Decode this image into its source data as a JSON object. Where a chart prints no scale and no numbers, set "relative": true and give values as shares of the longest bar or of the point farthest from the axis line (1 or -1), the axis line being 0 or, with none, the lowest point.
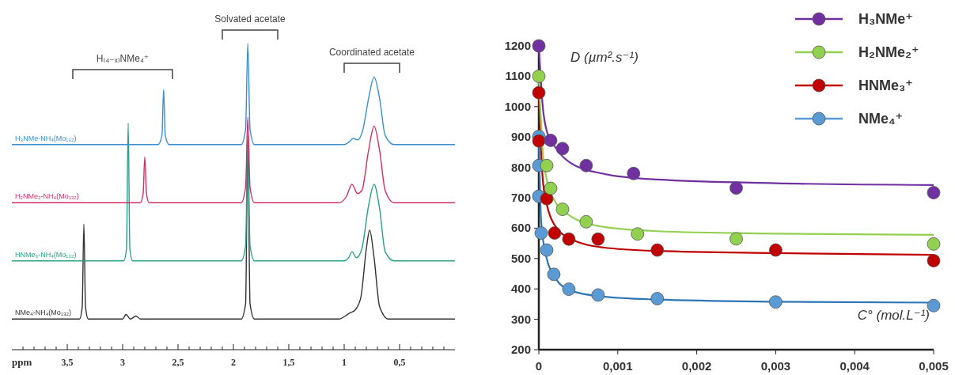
{
  "chart_data": [
    {
      "type": "line",
      "relative": true,
      "xlabel": "ppm",
      "xlim": [
        4,
        0
      ],
      "tick_labels": "x",
      "xticks": [
        {
          "value": 3.9,
          "label": null
        },
        {
          "value": 3.8,
          "label": null
        },
        {
          "value": 3.7,
          "label": null
        },
        {
          "value": 3.6,
          "label": null
        },
        {
          "value": 3.5,
          "label": "3,5"
        },
        {
          "value": 3.4,
          "label": null
        },
        {
          "value": 3.3,
          "label": null
        },
        {
          "value": 3.2,
          "label": null
        },
        {
          "value": 3.1,
          "label": null
        },
        {
          "value": 3,
          "label": "3"
        },
        {
          "value": 2.9,
          "label": null
        },
        {
          "value": 2.8,
          "label": null
        },
        {
          "value": 2.7,
          "label": null
        },
        {
          "value": 2.6,
          "label": null
        },
        {
          "value": 2.5,
          "label": "2,5"
        },
        {
          "value": 2.4,
          "label": null
        },
        {
          "value": 2.3,
          "label": null
        },
        {
          "value": 2.2,
          "label": null
        },
        {
          "value": 2.1,
          "label": null
        },
        {
          "value": 2,
          "label": "2"
        },
        {
          "value": 1.9,
          "label": null
        },
        {
          "value": 1.8,
          "label": null
        },
        {
          "value": 1.7,
          "label": null
        },
        {
          "value": 1.6,
          "label": null
        },
        {
          "value": 1.5,
          "label": "1,5"
        },
        {
          "value": 1.4,
          "label": null
        },
        {
          "value": 1.3,
          "label": null
        },
        {
          "value": 1.2,
          "label": null
        },
        {
          "value": 1.1,
          "label": null
        },
        {
          "value": 1,
          "label": "1"
        },
        {
          "value": 0.9,
          "label": null
        },
        {
          "value": 0.8,
          "label": null
        },
        {
          "value": 0.7,
          "label": null
        },
        {
          "value": 0.6,
          "label": null
        },
        {
          "value": 0.5,
          "label": "0,5"
        },
        {
          "value": 0.4,
          "label": null
        },
        {
          "value": 0.3,
          "label": null
        },
        {
          "value": 0.2,
          "label": null
        },
        {
          "value": 0.1,
          "label": null
        }
      ],
      "annotations": [
        "H₍₄₋ₓ₎NMe₄⁺",
        "Solvated acetate",
        "Coordinated acetate"
      ],
      "series": [
        {
          "name": "H₃NMe-NH₄(Mo₁₃₂)",
          "color": "#3a8fd0",
          "x": [
            4,
            2.68,
            2.645,
            2.63,
            2.615,
            2.58,
            1.93,
            1.89,
            1.87,
            1.85,
            1.81,
            1.0,
            0.95,
            0.92,
            0.88,
            0.83,
            0.78,
            0.73,
            0.68,
            0.63,
            0.55,
            0
          ],
          "values": [
            0.67,
            0.67,
            0.7,
            0.85,
            0.7,
            0.67,
            0.67,
            0.72,
            1.0,
            0.72,
            0.67,
            0.67,
            0.68,
            0.69,
            0.685,
            0.72,
            0.82,
            0.89,
            0.82,
            0.7,
            0.67,
            0.67
          ]
        },
        {
          "name": "H₂NMe₂-NH₄(Mo₁₃₂)",
          "color": "#d0306a",
          "x": [
            4,
            2.84,
            2.815,
            2.8,
            2.785,
            2.76,
            1.93,
            1.89,
            1.87,
            1.85,
            1.81,
            1.05,
            0.98,
            0.93,
            0.88,
            0.84,
            0.78,
            0.73,
            0.68,
            0.63,
            0.55,
            0
          ],
          "values": [
            0.48,
            0.48,
            0.51,
            0.63,
            0.51,
            0.48,
            0.48,
            0.53,
            0.76,
            0.53,
            0.48,
            0.48,
            0.5,
            0.54,
            0.51,
            0.52,
            0.65,
            0.73,
            0.65,
            0.52,
            0.48,
            0.48
          ]
        },
        {
          "name": "HNMe₃-NH₄(Mo₁₃₂)",
          "color": "#2aa08a",
          "x": [
            4,
            2.99,
            2.965,
            2.95,
            2.935,
            2.91,
            1.93,
            1.89,
            1.87,
            1.85,
            1.81,
            1.0,
            0.96,
            0.93,
            0.89,
            0.84,
            0.78,
            0.73,
            0.68,
            0.63,
            0.55,
            0
          ],
          "values": [
            0.29,
            0.29,
            0.33,
            0.74,
            0.33,
            0.29,
            0.29,
            0.34,
            0.7,
            0.34,
            0.29,
            0.29,
            0.3,
            0.32,
            0.3,
            0.33,
            0.47,
            0.54,
            0.46,
            0.32,
            0.29,
            0.29
          ]
        },
        {
          "name": "NMe₄-NH₄(Mo₁₃₂)",
          "color": "#333333",
          "x": [
            4,
            3.39,
            3.365,
            3.35,
            3.335,
            3.31,
            3.0,
            2.97,
            2.93,
            2.88,
            2.84,
            1.93,
            1.89,
            1.87,
            1.85,
            1.81,
            1.05,
            0.95,
            0.9,
            0.85,
            0.8,
            0.77,
            0.73,
            0.68,
            0.6,
            0
          ],
          "values": [
            0.1,
            0.1,
            0.14,
            0.41,
            0.14,
            0.1,
            0.1,
            0.115,
            0.1,
            0.11,
            0.1,
            0.1,
            0.15,
            0.68,
            0.15,
            0.1,
            0.1,
            0.12,
            0.13,
            0.17,
            0.33,
            0.39,
            0.3,
            0.14,
            0.1,
            0.1
          ]
        }
      ]
    },
    {
      "type": "scatter",
      "xlabel": "C° (mol.L⁻¹)",
      "ylabel": "D (µm².s⁻¹)",
      "xlim": [
        0,
        0.005
      ],
      "ylim": [
        200,
        1200
      ],
      "xticks": [
        0,
        {
          "value": 0.001,
          "label": "0,001"
        },
        {
          "value": 0.002,
          "label": "0,002"
        },
        {
          "value": 0.003,
          "label": "0,003"
        },
        {
          "value": 0.004,
          "label": "0,004"
        },
        {
          "value": 0.005,
          "label": "0,005"
        }
      ],
      "yticks": [
        200,
        300,
        400,
        500,
        600,
        700,
        800,
        900,
        1000,
        1100,
        1200
      ],
      "grid": false,
      "legend": "top right",
      "marker": "circle",
      "series": [
        {
          "name": "H₃NMe⁺",
          "color": "#7030a0",
          "x": [
            0,
            0.00015,
            0.0003,
            0.0006,
            0.0012,
            0.0025,
            0.005
          ],
          "values": [
            1200,
            889,
            862,
            806,
            780,
            732,
            717
          ]
        },
        {
          "name": "H₂NMe₂⁺",
          "color": "#92d050",
          "x": [
            0,
            0.0001,
            0.00015,
            0.0003,
            0.0006,
            0.00125,
            0.0025,
            0.005
          ],
          "values": [
            1100,
            806,
            731,
            662,
            621,
            581,
            565,
            548
          ]
        },
        {
          "name": "HNMe₃⁺",
          "color": "#c00000",
          "x": [
            0,
            0,
            0.0001,
            0.0002,
            0.00038,
            0.00075,
            0.0015,
            0.003,
            0.005
          ],
          "values": [
            1046,
            887,
            697,
            584,
            564,
            564,
            528,
            528,
            493
          ]
        },
        {
          "name": "NMe₄⁺",
          "color": "#5b9bd5",
          "x": [
            0,
            0,
            0,
            3e-05,
            0.0001,
            0.00019,
            0.00038,
            0.00075,
            0.0015,
            0.003,
            0.005
          ],
          "values": [
            902,
            806,
            705,
            584,
            528,
            448,
            399,
            380,
            368,
            357,
            345
          ]
        },
        {
          "type": "line",
          "marker": "none",
          "color": "#7030a0",
          "x": [
            0,
            5e-05,
            0.0001,
            0.0002,
            0.0004,
            0.0008,
            0.0015,
            0.003,
            0.005
          ],
          "values": [
            1200,
            1000,
            920,
            870,
            815,
            780,
            760,
            748,
            742
          ]
        },
        {
          "type": "line",
          "marker": "none",
          "color": "#92d050",
          "x": [
            0,
            5e-05,
            0.0001,
            0.0002,
            0.0004,
            0.0008,
            0.0015,
            0.003,
            0.005
          ],
          "values": [
            1100,
            850,
            760,
            690,
            640,
            605,
            590,
            582,
            578
          ]
        },
        {
          "type": "line",
          "marker": "none",
          "color": "#c00000",
          "x": [
            0,
            5e-05,
            0.0001,
            0.0002,
            0.0004,
            0.0008,
            0.0015,
            0.003,
            0.005
          ],
          "values": [
            1045,
            760,
            680,
            610,
            565,
            537,
            525,
            518,
            512
          ]
        },
        {
          "type": "line",
          "marker": "none",
          "color": "#2e75b6",
          "x": [
            0,
            3e-05,
            0.0001,
            0.0002,
            0.0004,
            0.0008,
            0.0015,
            0.003,
            0.005
          ],
          "values": [
            900,
            620,
            500,
            440,
            395,
            375,
            365,
            358,
            355
          ]
        }
      ]
    }
  ]
}
